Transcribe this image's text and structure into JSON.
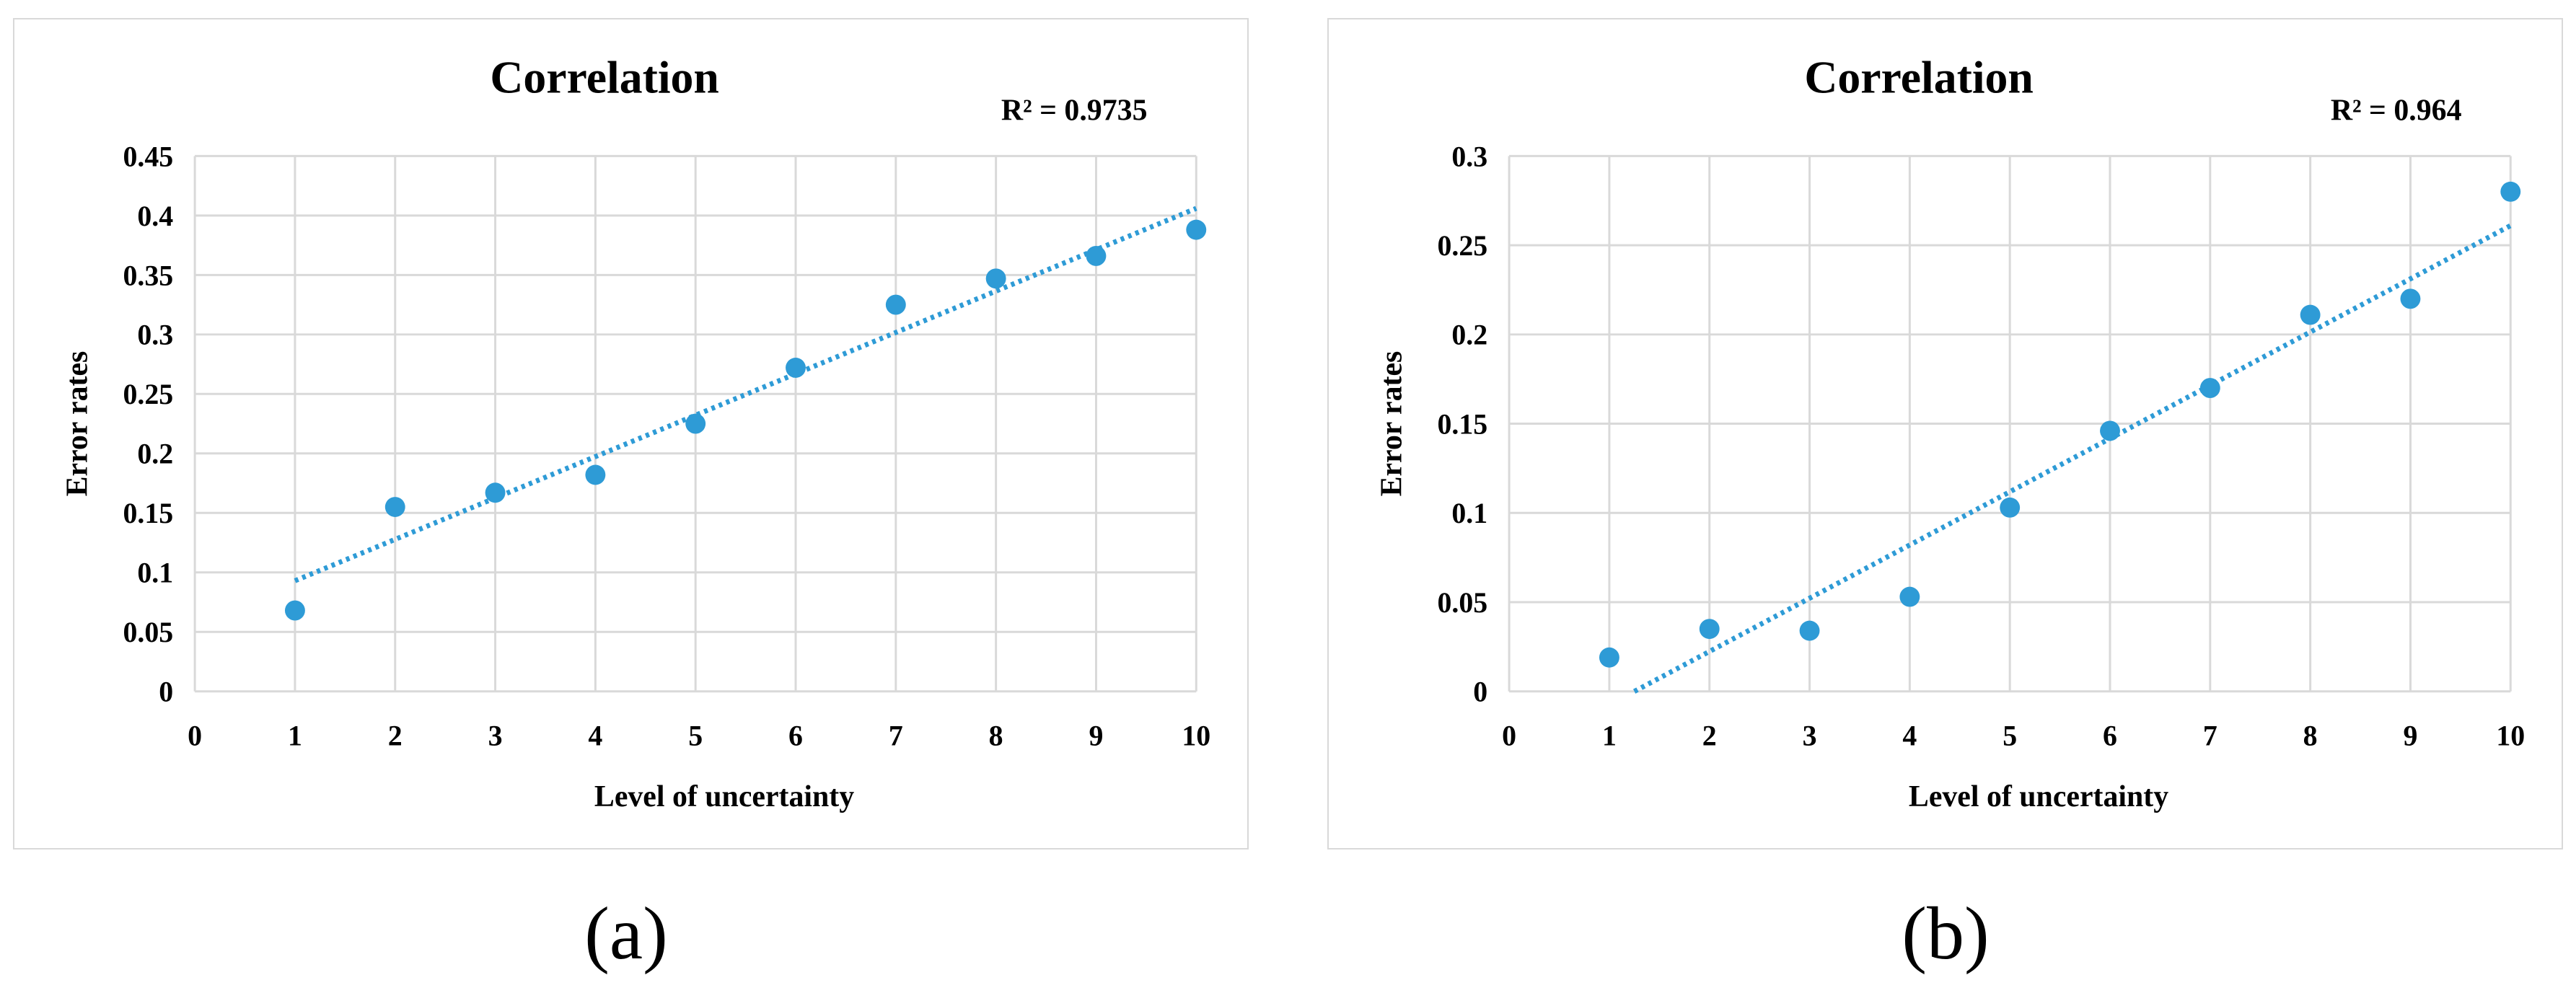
{
  "chart_data": [
    {
      "type": "scatter",
      "title": "Correlation",
      "xlabel": "Level of uncertainty",
      "ylabel": "Error  rates",
      "annotation": "R² = 0.9735",
      "xlim": [
        0,
        10
      ],
      "ylim": [
        0,
        0.45
      ],
      "xticks": [
        "0",
        "1",
        "2",
        "3",
        "4",
        "5",
        "6",
        "7",
        "8",
        "9",
        "10"
      ],
      "yticks": [
        "0",
        "0.05",
        "0.1",
        "0.15",
        "0.2",
        "0.25",
        "0.3",
        "0.35",
        "0.4",
        "0.45"
      ],
      "grid": true,
      "marker_color": "#2e9bd6",
      "trendline": {
        "type": "linear",
        "style": "dotted",
        "from": [
          1,
          0.093
        ],
        "to": [
          10,
          0.406
        ]
      },
      "x": [
        1,
        2,
        3,
        4,
        5,
        6,
        7,
        8,
        9,
        10
      ],
      "y": [
        0.068,
        0.155,
        0.167,
        0.182,
        0.225,
        0.272,
        0.325,
        0.347,
        0.366,
        0.388
      ]
    },
    {
      "type": "scatter",
      "title": "Correlation",
      "xlabel": "Level of uncertainty",
      "ylabel": "Error  rates",
      "annotation": "R² = 0.964",
      "xlim": [
        0,
        10
      ],
      "ylim": [
        0,
        0.3
      ],
      "xticks": [
        "0",
        "1",
        "2",
        "3",
        "4",
        "5",
        "6",
        "7",
        "8",
        "9",
        "10"
      ],
      "yticks": [
        "0",
        "0.05",
        "0.1",
        "0.15",
        "0.2",
        "0.25",
        "0.3"
      ],
      "grid": true,
      "marker_color": "#2e9bd6",
      "trendline": {
        "type": "linear",
        "style": "dotted",
        "from": [
          1.25,
          0
        ],
        "to": [
          10,
          0.261
        ]
      },
      "x": [
        1,
        2,
        3,
        4,
        5,
        6,
        7,
        8,
        9,
        10
      ],
      "y": [
        0.019,
        0.035,
        0.034,
        0.053,
        0.103,
        0.146,
        0.17,
        0.211,
        0.22,
        0.28
      ]
    }
  ],
  "captions": {
    "a": "(a)",
    "b": "(b)"
  }
}
